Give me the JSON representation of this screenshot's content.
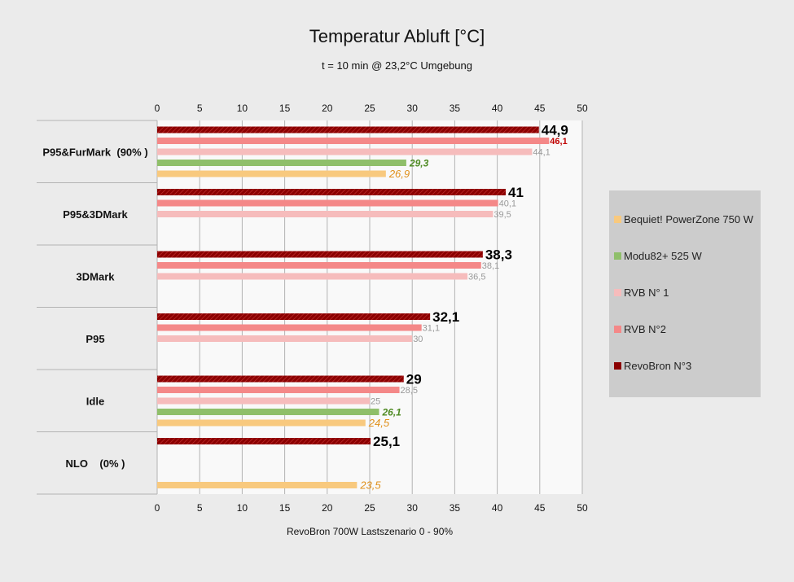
{
  "chart_data": {
    "type": "bar",
    "orientation": "horizontal",
    "title": "Temperatur Abluft [°C]",
    "subtitle": "t = 10 min @ 23,2°C Umgebung",
    "xlabel": "RevoBron 700W Lastszenario 0 - 90%",
    "xlim": [
      0,
      50
    ],
    "xticks": [
      "0",
      "5",
      "10",
      "15",
      "20",
      "25",
      "30",
      "35",
      "40",
      "45",
      "50"
    ],
    "grid": true,
    "legend_position": "right",
    "categories": [
      "P95&FurMark  (90% )",
      "P95&3DMark",
      "3DMark",
      "P95",
      "Idle",
      "NLO    (0% )"
    ],
    "series": [
      {
        "name": "RevoBron N°3",
        "color": "#8b0000",
        "values": [
          44.9,
          41,
          38.3,
          32.1,
          29,
          25.1
        ],
        "labels": [
          "44,9",
          "41",
          "38,3",
          "32,1",
          "29",
          "25,1"
        ]
      },
      {
        "name": "RVB N°2",
        "color": "#f48888",
        "values": [
          46.1,
          40.1,
          38.1,
          31.1,
          28.5,
          null
        ],
        "labels": [
          "46,1",
          "40,1",
          "38,1",
          "31,1",
          "28,5",
          null
        ]
      },
      {
        "name": "RVB N° 1",
        "color": "#f6bcbc",
        "values": [
          44.1,
          39.5,
          36.5,
          30,
          25,
          null
        ],
        "labels": [
          "44,1",
          "39,5",
          "36,5",
          "30",
          "25",
          null
        ]
      },
      {
        "name": "Modu82+ 525 W",
        "color": "#8fbf6a",
        "values": [
          29.3,
          null,
          null,
          null,
          26.1,
          null
        ],
        "labels": [
          "29,3",
          null,
          null,
          null,
          "26,1",
          null
        ]
      },
      {
        "name": "Bequiet! PowerZone 750 W",
        "color": "#f8c97e",
        "values": [
          26.9,
          null,
          null,
          null,
          24.5,
          23.5
        ],
        "labels": [
          "26,9",
          null,
          null,
          null,
          "24,5",
          "23,5"
        ]
      }
    ],
    "legend_order": [
      "Bequiet! PowerZone 750 W",
      "Modu82+ 525 W",
      "RVB N° 1",
      "RVB N°2",
      "RevoBron N°3"
    ]
  }
}
